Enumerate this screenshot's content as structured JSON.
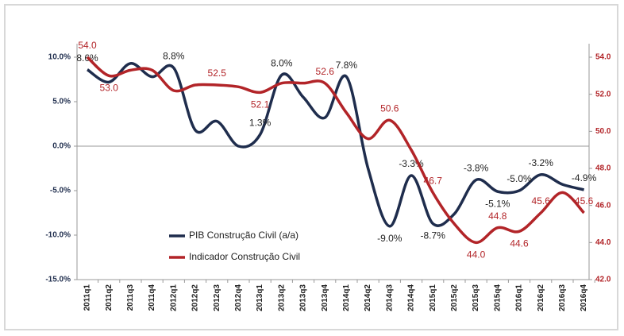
{
  "chart_data": {
    "type": "line",
    "categories": [
      "2011q1",
      "2011q2",
      "2011q3",
      "2011q4",
      "2012q1",
      "2012q2",
      "2012q3",
      "2012q4",
      "2013q1",
      "2013q2",
      "2013q3",
      "2013q4",
      "2014q1",
      "2014q2",
      "2014q3",
      "2014q4",
      "2015q1",
      "2015q2",
      "2015q3",
      "2015q4",
      "2016q1",
      "2016q2",
      "2016q3",
      "2016q4"
    ],
    "series": [
      {
        "name": "PIB Construção Civil (a/a)",
        "color": "#1f2d4d",
        "values": [
          8.6,
          7.2,
          9.3,
          7.8,
          8.8,
          1.8,
          2.8,
          0.0,
          1.3,
          8.0,
          5.5,
          3.2,
          7.8,
          -2.5,
          -9.0,
          -3.3,
          -8.7,
          -7.6,
          -3.8,
          -5.1,
          -5.0,
          -3.2,
          -4.3,
          -4.9
        ],
        "value_labels": [
          "8.6%",
          null,
          null,
          null,
          "8.8%",
          null,
          null,
          null,
          "1.3%",
          "8.0%",
          null,
          null,
          "7.8%",
          null,
          "-9.0%",
          "-3.3%",
          "-8.7%",
          null,
          "-3.8%",
          "-5.1%",
          "-5.0%",
          "-3.2%",
          null,
          "-4.9%"
        ]
      },
      {
        "name": "Indicador Construção Civil",
        "color": "#b22428",
        "axis": "y2",
        "values": [
          54.0,
          53.0,
          53.3,
          53.3,
          52.2,
          52.5,
          52.5,
          52.4,
          52.1,
          52.6,
          52.6,
          52.6,
          51.0,
          49.6,
          50.6,
          49.0,
          46.7,
          45.0,
          44.0,
          44.8,
          44.6,
          45.6,
          46.7,
          45.6
        ],
        "value_labels": [
          "54.0",
          "53.0",
          null,
          null,
          null,
          null,
          "52.5",
          null,
          "52.1",
          null,
          null,
          "52.6",
          null,
          null,
          "50.6",
          null,
          "46.7",
          null,
          "44.0",
          "44.8",
          "44.6",
          "45.6",
          null,
          "45.6"
        ]
      }
    ],
    "ylim": [
      -15,
      10
    ],
    "yticks": [
      {
        "value": -15,
        "label": "-15.0%"
      },
      {
        "value": -10,
        "label": "-10.0%"
      },
      {
        "value": -5,
        "label": "-5.0%"
      },
      {
        "value": 0,
        "label": "0.0%"
      },
      {
        "value": 5,
        "label": "5.0%"
      },
      {
        "value": 10,
        "label": "10.0%"
      }
    ],
    "y2lim": [
      42,
      54
    ],
    "y2ticks": [
      {
        "value": 42,
        "label": "42.0"
      },
      {
        "value": 44,
        "label": "44.0"
      },
      {
        "value": 46,
        "label": "46.0"
      },
      {
        "value": 48,
        "label": "48.0"
      },
      {
        "value": 50,
        "label": "50.0"
      },
      {
        "value": 52,
        "label": "52.0"
      },
      {
        "value": 54,
        "label": "54.0"
      }
    ],
    "legend": "lower-left"
  }
}
